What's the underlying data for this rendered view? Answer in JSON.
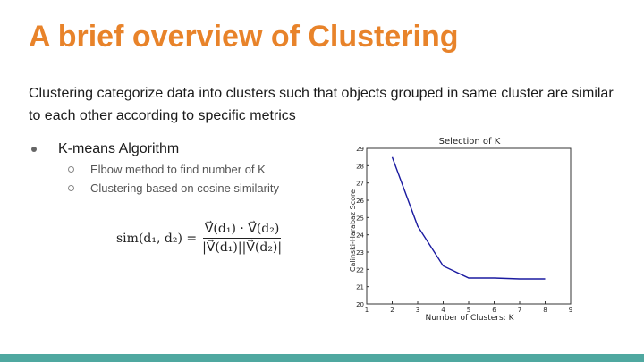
{
  "slide": {
    "title": "A brief overview of Clustering",
    "intro": "Clustering categorize data into clusters such that objects grouped in same cluster are similar to each other according to specific metrics",
    "bullets": [
      {
        "text": "K-means Algorithm",
        "sub": [
          "Elbow method to find number of K",
          "Clustering based on cosine similarity"
        ]
      }
    ],
    "formula": {
      "lhs": "sim(d₁, d₂) =",
      "numerator": "V⃗(d₁) · V⃗(d₂)",
      "denominator": "|V⃗(d₁)||V⃗(d₂)|"
    },
    "colors": {
      "title": "#e8832a",
      "accent_bar": "#4fa8a0",
      "line": "#1a1aa0"
    }
  },
  "chart_data": {
    "type": "line",
    "title": "Selection of K",
    "xlabel": "Number of Clusters: K",
    "ylabel": "Calinski-Harabaz Score",
    "x": [
      2,
      3,
      4,
      5,
      6,
      7,
      8
    ],
    "series": [
      {
        "values": [
          28.5,
          24.5,
          22.2,
          21.5,
          21.5,
          21.45,
          21.45
        ]
      }
    ],
    "xlim": [
      1,
      9
    ],
    "ylim": [
      20,
      29
    ],
    "xticks": [
      "1",
      "2",
      "3",
      "4",
      "5",
      "6",
      "7",
      "8",
      "9"
    ],
    "yticks": [
      "20",
      "21",
      "22",
      "23",
      "24",
      "25",
      "26",
      "27",
      "28",
      "29"
    ],
    "grid": false
  }
}
